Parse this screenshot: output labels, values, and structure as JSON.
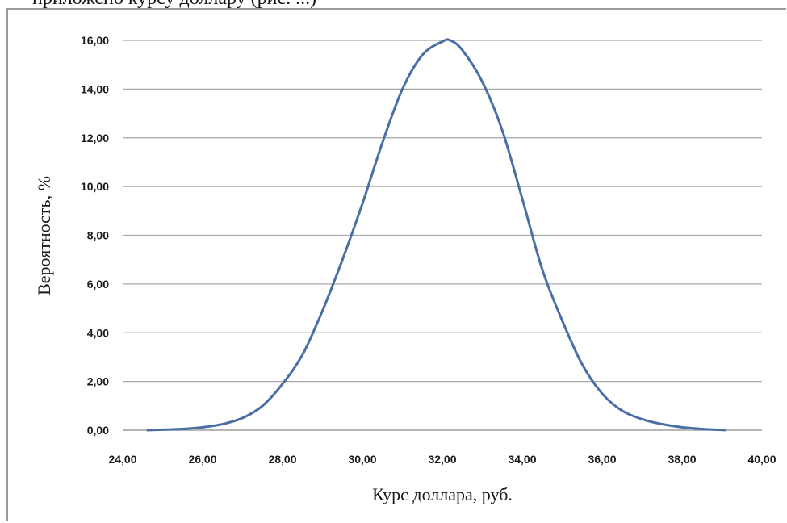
{
  "header_fragment": "приложено курсу доллару (рис. ...)",
  "chart_data": {
    "type": "line",
    "title": "",
    "xlabel": "Курс доллара, руб.",
    "ylabel": "Вероятность, %",
    "xlim": [
      24,
      40
    ],
    "ylim": [
      0,
      16
    ],
    "xticks": [
      "24,00",
      "26,00",
      "28,00",
      "30,00",
      "32,00",
      "34,00",
      "36,00",
      "38,00",
      "40,00"
    ],
    "yticks": [
      "0,00",
      "2,00",
      "4,00",
      "6,00",
      "8,00",
      "10,00",
      "12,00",
      "14,00",
      "16,00"
    ],
    "grid": "horizontal",
    "line_color": "#4a6fa5",
    "series": [
      {
        "x": [
          24.6,
          25.0,
          25.5,
          26.0,
          26.5,
          27.0,
          27.5,
          28.0,
          28.5,
          29.0,
          29.5,
          30.0,
          30.5,
          31.0,
          31.5,
          32.0,
          32.2,
          32.5,
          33.0,
          33.5,
          34.0,
          34.5,
          35.0,
          35.5,
          36.0,
          36.5,
          37.0,
          37.5,
          38.0,
          38.5,
          39.1
        ],
        "y": [
          0.0,
          0.02,
          0.05,
          0.12,
          0.25,
          0.5,
          1.0,
          1.9,
          3.1,
          4.9,
          7.0,
          9.3,
          11.8,
          14.0,
          15.4,
          15.95,
          16.0,
          15.6,
          14.3,
          12.3,
          9.5,
          6.6,
          4.5,
          2.7,
          1.5,
          0.8,
          0.45,
          0.25,
          0.12,
          0.05,
          0.0
        ]
      }
    ]
  }
}
